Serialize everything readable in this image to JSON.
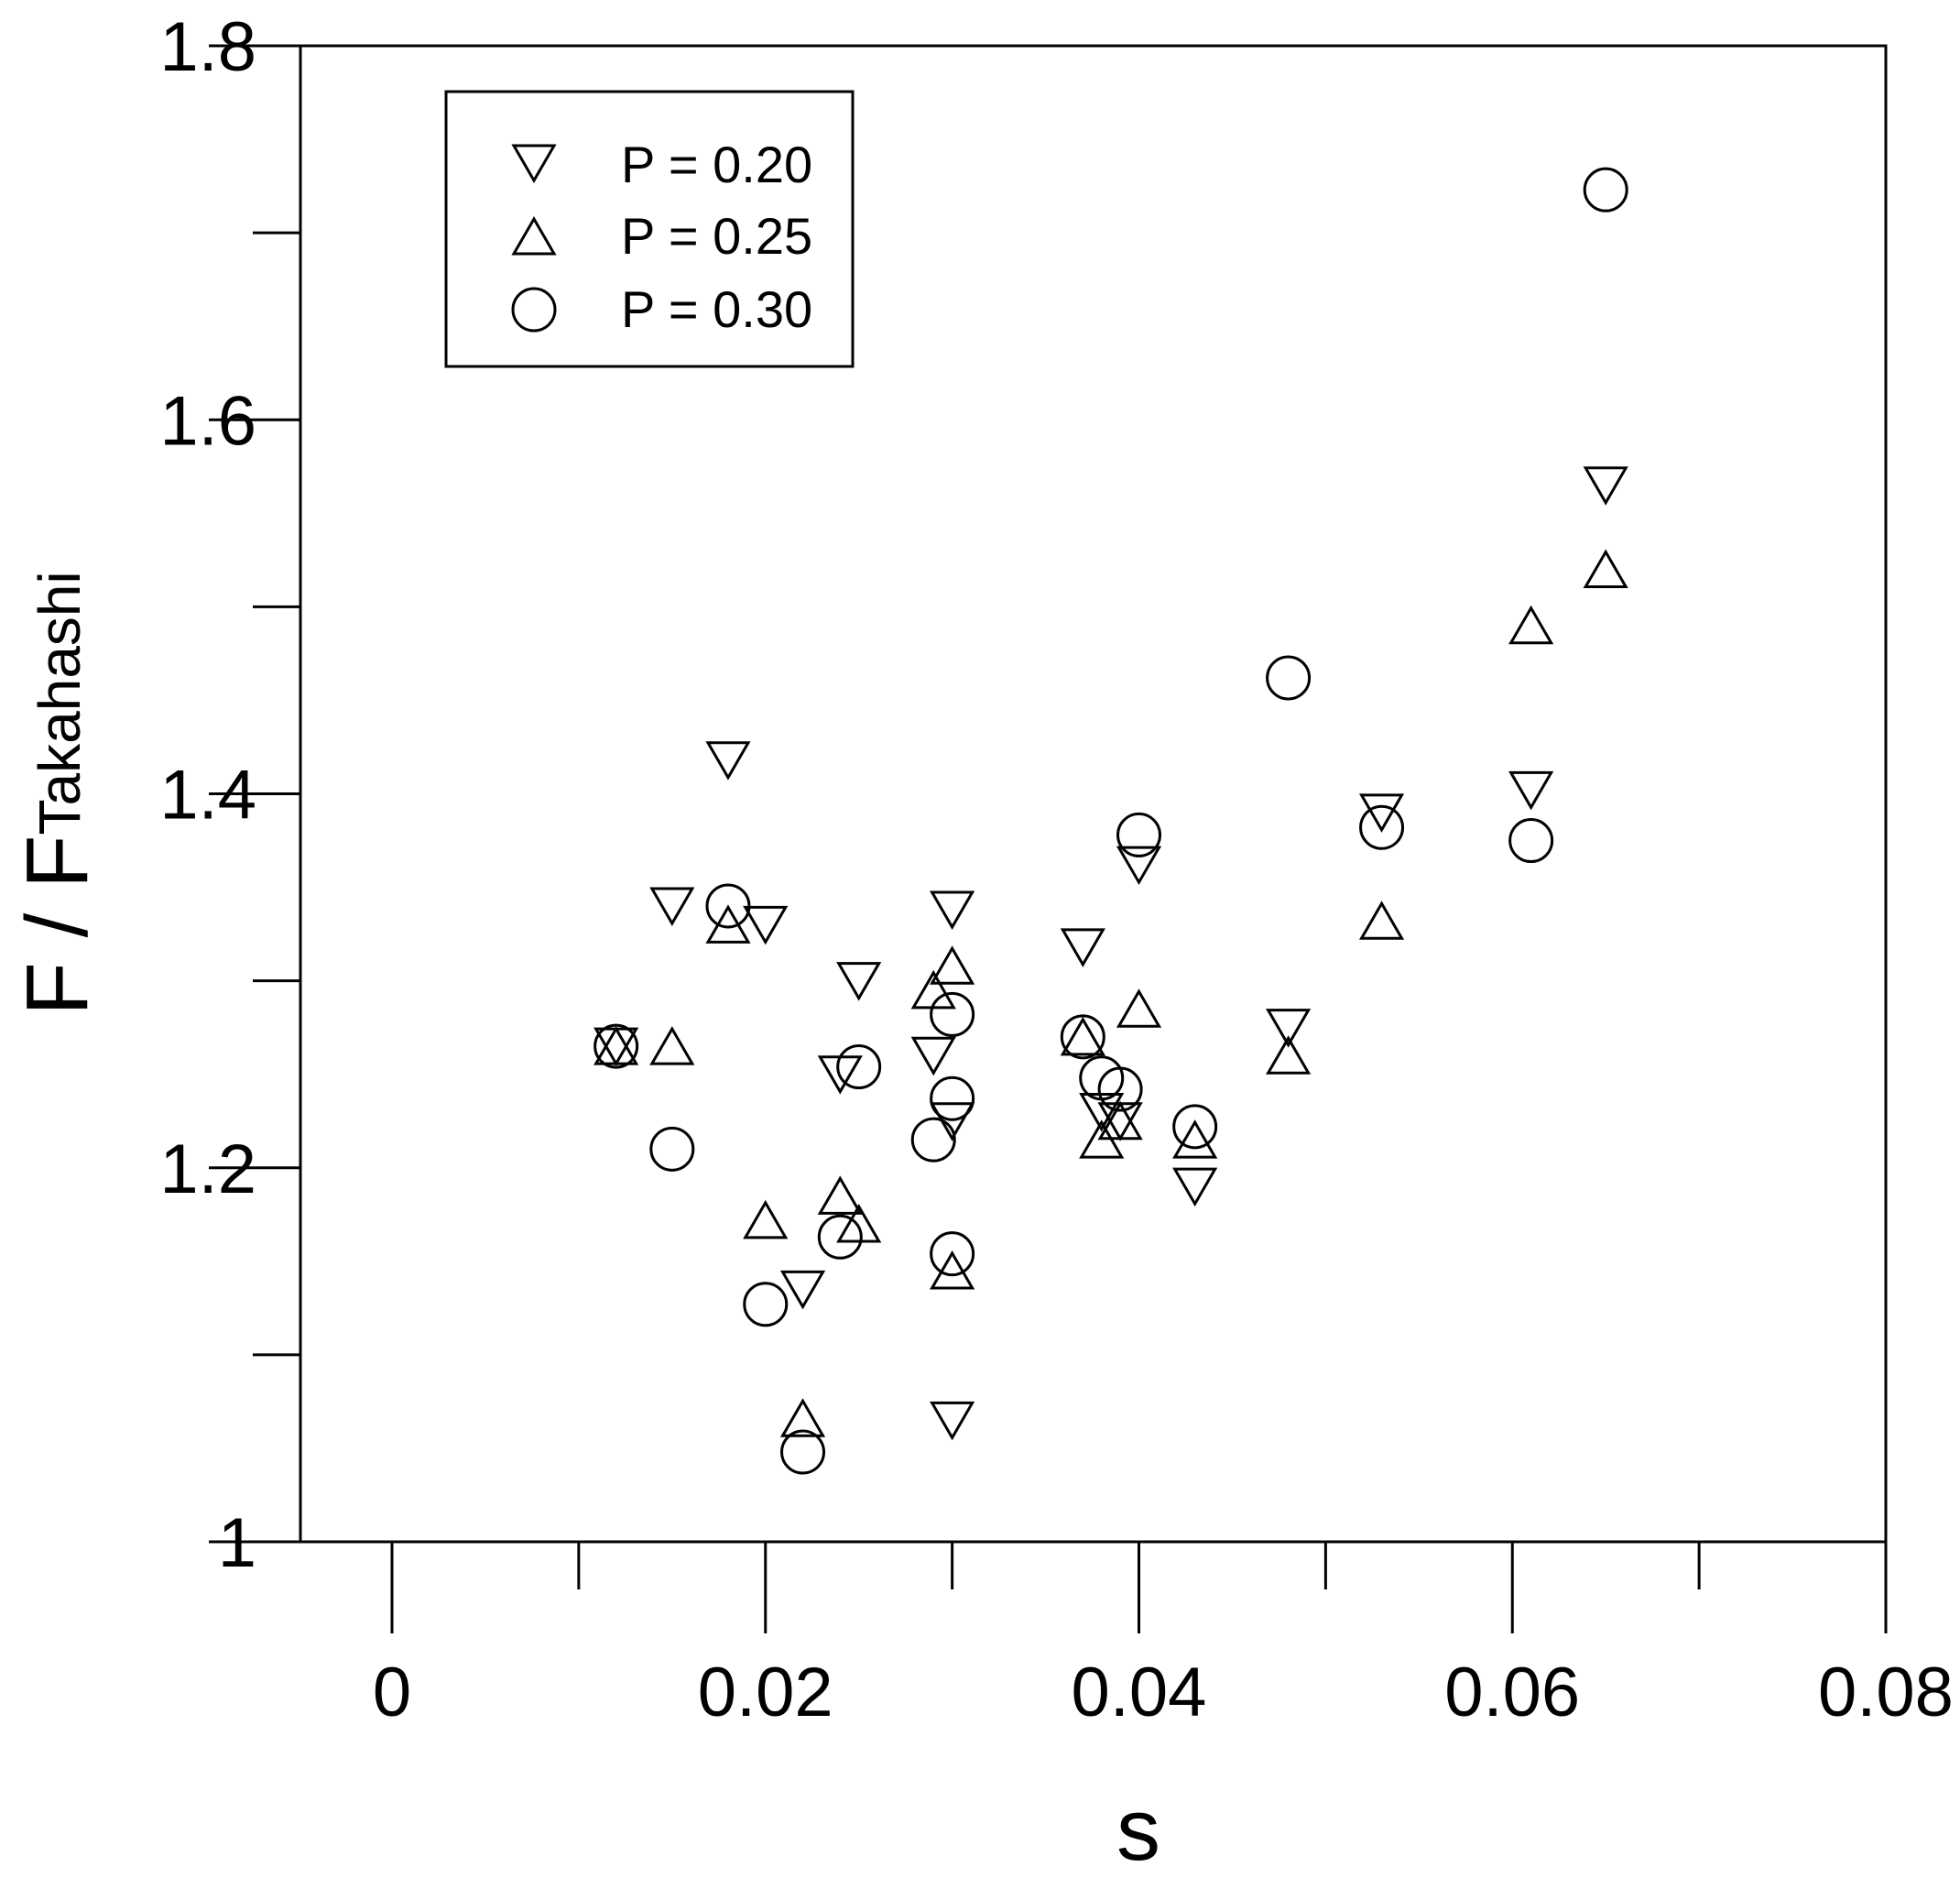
{
  "chart_data": {
    "type": "scatter",
    "xlabel": "s",
    "ylabel": "F / F",
    "ylabel_subscript": "Takahashi",
    "xlim": [
      -0.016,
      0.08
    ],
    "ylim": [
      0.95,
      1.8
    ],
    "x_ticks": [
      "0",
      "0.02",
      "0.04",
      "0.06",
      "0.08"
    ],
    "y_ticks": [
      "1",
      "1.2",
      "1.4",
      "1.6",
      "1.8"
    ],
    "grid": false,
    "legend_position": "top-left",
    "series": [
      {
        "name": "P = 0.20",
        "marker": "triangle-down",
        "points": [
          [
            0.012,
            1.265
          ],
          [
            0.015,
            1.34
          ],
          [
            0.018,
            1.418
          ],
          [
            0.02,
            1.33
          ],
          [
            0.022,
            1.135
          ],
          [
            0.024,
            1.25
          ],
          [
            0.025,
            1.3
          ],
          [
            0.029,
            1.26
          ],
          [
            0.03,
            1.338
          ],
          [
            0.03,
            1.225
          ],
          [
            0.03,
            1.065
          ],
          [
            0.037,
            1.318
          ],
          [
            0.038,
            1.23
          ],
          [
            0.039,
            1.225
          ],
          [
            0.04,
            1.362
          ],
          [
            0.043,
            1.19
          ],
          [
            0.048,
            1.275
          ],
          [
            0.053,
            1.39
          ],
          [
            0.061,
            1.402
          ],
          [
            0.065,
            1.565
          ]
        ]
      },
      {
        "name": "P = 0.25",
        "marker": "triangle-up",
        "points": [
          [
            0.012,
            1.265
          ],
          [
            0.015,
            1.265
          ],
          [
            0.018,
            1.33
          ],
          [
            0.02,
            1.172
          ],
          [
            0.022,
            1.066
          ],
          [
            0.024,
            1.185
          ],
          [
            0.025,
            1.17
          ],
          [
            0.029,
            1.295
          ],
          [
            0.03,
            1.308
          ],
          [
            0.03,
            1.145
          ],
          [
            0.037,
            1.27
          ],
          [
            0.038,
            1.215
          ],
          [
            0.039,
            1.225
          ],
          [
            0.04,
            1.285
          ],
          [
            0.043,
            1.215
          ],
          [
            0.048,
            1.26
          ],
          [
            0.053,
            1.332
          ],
          [
            0.061,
            1.49
          ],
          [
            0.065,
            1.52
          ]
        ]
      },
      {
        "name": "P = 0.30",
        "marker": "circle",
        "points": [
          [
            0.012,
            1.265
          ],
          [
            0.015,
            1.21
          ],
          [
            0.018,
            1.34
          ],
          [
            0.02,
            1.127
          ],
          [
            0.022,
            1.048
          ],
          [
            0.024,
            1.163
          ],
          [
            0.025,
            1.254
          ],
          [
            0.029,
            1.215
          ],
          [
            0.03,
            1.282
          ],
          [
            0.03,
            1.237
          ],
          [
            0.03,
            1.154
          ],
          [
            0.037,
            1.27
          ],
          [
            0.038,
            1.248
          ],
          [
            0.039,
            1.242
          ],
          [
            0.04,
            1.378
          ],
          [
            0.043,
            1.222
          ],
          [
            0.048,
            1.462
          ],
          [
            0.053,
            1.382
          ],
          [
            0.061,
            1.375
          ],
          [
            0.065,
            1.723
          ]
        ]
      }
    ]
  }
}
